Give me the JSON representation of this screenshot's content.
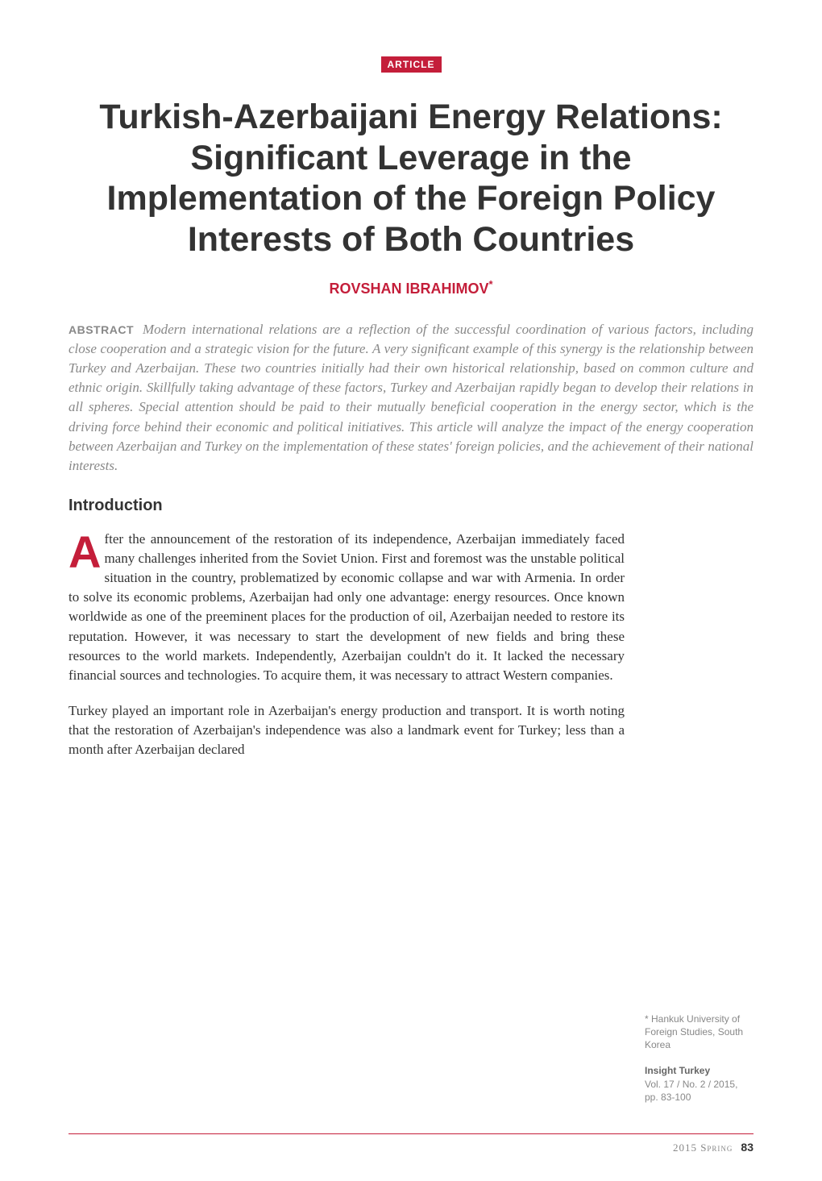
{
  "badge": "ARTICLE",
  "title": "Turkish-Azerbaijani Energy Relations: Significant Leverage in the Implementation of the Foreign Policy Interests of Both Countries",
  "author_name": "ROVSHAN IBRAHIMOV",
  "author_marker": "*",
  "abstract_label": "ABSTRACT",
  "abstract_text": "Modern international relations are a reflection of the successful coordination of various factors, including close cooperation and a strategic vision for the future. A very significant example of this synergy is the relationship between Turkey and Azerbaijan. These two countries initially had their own historical relationship, based on common culture and ethnic origin. Skillfully taking advantage of these factors, Turkey and Azerbaijan rapidly began to develop their relations in all spheres. Special attention should be paid to their mutually beneficial cooperation in the energy sector, which is the driving force behind their economic and political initiatives. This article will analyze the impact of the energy cooperation between Azerbaijan and Turkey on the implementation of these states' foreign policies, and the achievement of their national interests.",
  "sections": {
    "intro_heading": "Introduction",
    "dropcap": "A",
    "para1": "fter the announcement of the restoration of its independence, Azerbaijan immediately faced many challenges inherited from the Soviet Union. First and foremost was the unstable political situation in the country, problematized by economic collapse and war with Armenia. In order to solve its economic problems, Azerbaijan had only one advantage: energy resources. Once known worldwide as one of the preeminent places for the production of oil, Azerbaijan needed to restore its reputation. However, it was necessary to start the development of new fields and bring these resources to the world markets. Independently, Azerbaijan couldn't do it. It lacked the necessary financial sources and technologies. To acquire them, it was necessary to attract Western companies.",
    "para2": "Turkey played an important role in Azerbaijan's energy production and transport. It is worth noting that the restoration of Azerbaijan's independence was also a landmark event for Turkey; less than a month after Azerbaijan declared"
  },
  "sidebar": {
    "affiliation_marker": "*",
    "affiliation": " Hankuk University of Foreign Studies, South Korea",
    "journal_name": "Insight Turkey",
    "journal_meta": "Vol. 17 / No. 2 / 2015, pp. 83-100"
  },
  "footer": {
    "season": "2015 Spring",
    "page_number": "83"
  },
  "colors": {
    "accent_red": "#c41e3a",
    "text_dark": "#333333",
    "text_gray": "#888888",
    "background": "#ffffff"
  }
}
